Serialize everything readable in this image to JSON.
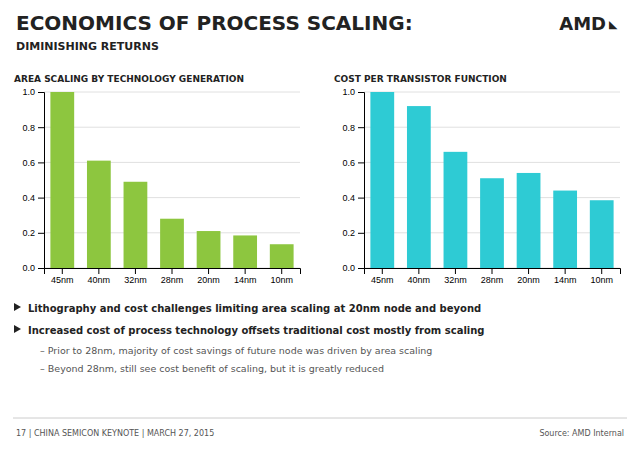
{
  "title": "ECONOMICS OF PROCESS SCALING:",
  "subtitle": "DIMINISHING RETURNS",
  "annotations": [
    "AMD",
    "◣",
    "Lithography  and cost challenges limiting area scaling at 20nm node and beyond",
    "Increased cost of process technology offsets traditional cost mostly from scaling",
    "–  Prior to 28nm, majority of cost savings of future node was driven by area scaling",
    "–  Beyond 28nm, still see cost benefit of scaling, but it is greatly reduced",
    "17  |  CHINA SEMICON KEYNOTE  |  MARCH 27, 2015",
    "Source: AMD Internal"
  ],
  "chart_data": [
    {
      "type": "bar",
      "title": "AREA SCALING BY TECHNOLOGY GENERATION",
      "categories": [
        "45nm",
        "40nm",
        "32nm",
        "28nm",
        "20nm",
        "14nm",
        "10nm"
      ],
      "values": [
        1.0,
        0.61,
        0.49,
        0.28,
        0.21,
        0.185,
        0.135
      ],
      "color": "#8dc63f",
      "ylim": [
        0,
        1.0
      ],
      "yticks": [
        {
          "value": 0,
          "label": "0.0"
        },
        0.2,
        0.4,
        0.6,
        0.8,
        {
          "value": 1,
          "label": "1.0"
        }
      ],
      "grid": true
    },
    {
      "type": "bar",
      "title": "COST PER TRANSISTOR FUNCTION",
      "categories": [
        "45nm",
        "40nm",
        "32nm",
        "28nm",
        "20nm",
        "14nm",
        "10nm"
      ],
      "values": [
        1.0,
        0.92,
        0.66,
        0.51,
        0.54,
        0.44,
        0.385
      ],
      "color": "#2ecbd4",
      "ylim": [
        0,
        1.0
      ],
      "yticks": [
        {
          "value": 0,
          "label": "0.0"
        },
        0.2,
        0.4,
        0.6,
        0.8,
        {
          "value": 1,
          "label": "1.0"
        }
      ],
      "grid": true
    }
  ]
}
